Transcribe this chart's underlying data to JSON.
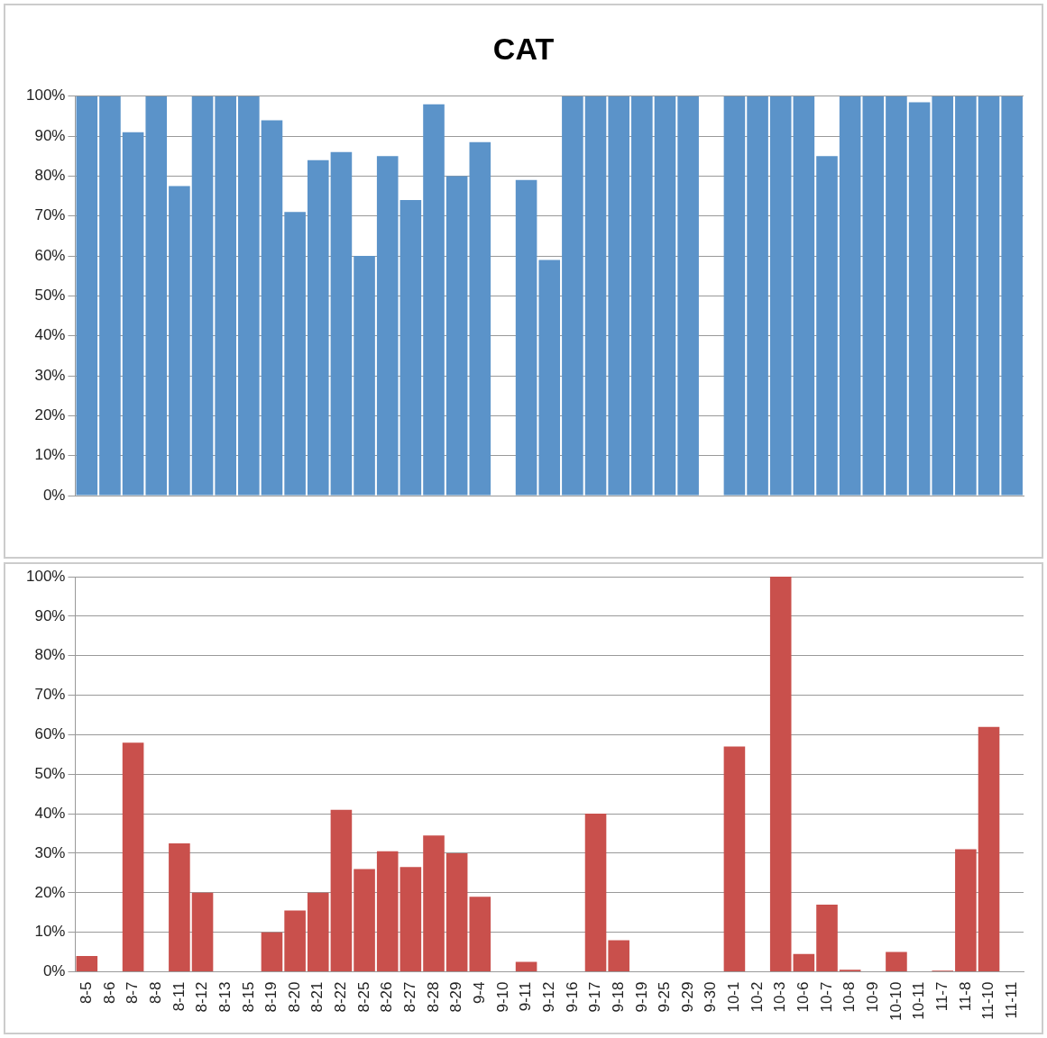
{
  "chart_data": [
    {
      "type": "bar",
      "title": "CAT",
      "categories": [
        null,
        null,
        null,
        null,
        null,
        null,
        null,
        null,
        null,
        null,
        null,
        null,
        null,
        null,
        null,
        null,
        null,
        null,
        null,
        null,
        null,
        null,
        null,
        null,
        null,
        null,
        null,
        null,
        null,
        null,
        null,
        null,
        null,
        null,
        null,
        null,
        null,
        null,
        null,
        null,
        null
      ],
      "values": [
        100,
        100,
        91,
        100,
        77.5,
        100,
        100,
        100,
        94,
        71,
        84,
        86,
        60,
        85,
        74,
        98,
        80,
        88.5,
        null,
        79,
        59,
        100,
        100,
        100,
        100,
        100,
        100,
        null,
        100,
        100,
        100,
        100,
        85,
        100,
        100,
        100,
        98.5,
        100,
        100,
        100,
        100
      ],
      "color": "#5b93c9",
      "ylim": [
        0,
        100
      ],
      "yticks": [
        {
          "value": 0,
          "label": "0%"
        },
        {
          "value": 10,
          "label": "10%"
        },
        {
          "value": 20,
          "label": "20%"
        },
        {
          "value": 30,
          "label": "30%"
        },
        {
          "value": 40,
          "label": "40%"
        },
        {
          "value": 50,
          "label": "50%"
        },
        {
          "value": 60,
          "label": "60%"
        },
        {
          "value": 70,
          "label": "70%"
        },
        {
          "value": 80,
          "label": "80%"
        },
        {
          "value": 90,
          "label": "90%"
        },
        {
          "value": 100,
          "label": "100%"
        }
      ],
      "grid": "y",
      "tick_labels": "y"
    },
    {
      "type": "bar",
      "categories": [
        "8-5",
        "8-6",
        "8-7",
        "8-8",
        "8-11",
        "8-12",
        "8-13",
        "8-15",
        "8-19",
        "8-20",
        "8-21",
        "8-22",
        "8-25",
        "8-26",
        "8-27",
        "8-28",
        "8-29",
        "9-4",
        "9-10",
        "9-11",
        "9-12",
        "9-16",
        "9-17",
        "9-18",
        "9-19",
        "9-25",
        "9-29",
        "9-30",
        "10-1",
        "10-2",
        "10-3",
        "10-6",
        "10-7",
        "10-8",
        "10-9",
        "10-10",
        "10-11",
        "11-7",
        "11-8",
        "11-10",
        "11-11"
      ],
      "values": [
        4,
        0,
        58,
        0,
        32.5,
        20,
        0,
        0,
        10,
        15.5,
        20,
        41,
        26,
        30.5,
        26.5,
        34.5,
        30,
        19,
        0,
        2.5,
        0,
        0,
        40,
        8,
        0,
        0,
        0,
        0,
        57,
        0,
        100,
        4.5,
        17,
        0.5,
        0,
        5,
        0,
        0.3,
        31,
        62,
        0
      ],
      "color": "#c9504c",
      "ylim": [
        0,
        100
      ],
      "yticks": [
        {
          "value": 0,
          "label": "0%"
        },
        {
          "value": 10,
          "label": "10%"
        },
        {
          "value": 20,
          "label": "20%"
        },
        {
          "value": 30,
          "label": "30%"
        },
        {
          "value": 40,
          "label": "40%"
        },
        {
          "value": 50,
          "label": "50%"
        },
        {
          "value": 60,
          "label": "60%"
        },
        {
          "value": 70,
          "label": "70%"
        },
        {
          "value": 80,
          "label": "80%"
        },
        {
          "value": 90,
          "label": "90%"
        },
        {
          "value": 100,
          "label": "100%"
        }
      ],
      "grid": "y"
    }
  ]
}
